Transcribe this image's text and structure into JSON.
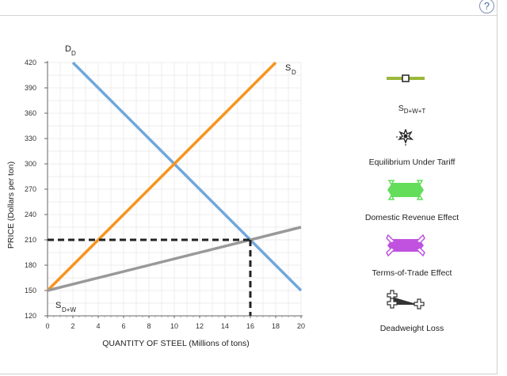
{
  "help_icon": "?",
  "chart_data": {
    "type": "line",
    "xlabel": "QUANTITY OF STEEL (Millions of tons)",
    "ylabel": "PRICE (Dollars per ton)",
    "xlim": [
      0,
      20
    ],
    "ylim": [
      120,
      420
    ],
    "x_ticks": [
      "0",
      "2",
      "4",
      "6",
      "8",
      "10",
      "12",
      "14",
      "16",
      "18",
      "20"
    ],
    "y_ticks": [
      "120",
      "150",
      "180",
      "210",
      "240",
      "270",
      "300",
      "330",
      "360",
      "390",
      "420"
    ],
    "grid": true,
    "series": [
      {
        "name": "D",
        "name_sub": "D",
        "color": "#6fa8dc",
        "x": [
          2,
          20
        ],
        "y": [
          420,
          150
        ]
      },
      {
        "name": "S",
        "name_sub": "D",
        "color": "#f7941d",
        "x": [
          0,
          18
        ],
        "y": [
          150,
          420
        ]
      },
      {
        "name": "S",
        "name_sub": "D+W",
        "color": "#999999",
        "x": [
          0,
          20
        ],
        "y": [
          150,
          225
        ]
      }
    ],
    "dashed_lines": [
      {
        "from": [
          0,
          210
        ],
        "to": [
          16,
          210
        ],
        "color": "#222222"
      },
      {
        "from": [
          16,
          210
        ],
        "to": [
          16,
          120
        ],
        "color": "#222222"
      }
    ]
  },
  "legend": [
    {
      "icon": "line-icon",
      "main": "S",
      "sub": "D+W+T",
      "color": "#9ab83a"
    },
    {
      "icon": "star-point-icon",
      "label": "Equilibrium Under Tariff",
      "color": "#333333"
    },
    {
      "icon": "green-polygon-icon",
      "label": "Domestic Revenue Effect",
      "color": "#63dd5a"
    },
    {
      "icon": "purple-polygon-icon",
      "label": "Terms-of-Trade Effect",
      "color": "#c052df"
    },
    {
      "icon": "black-triangle-icon",
      "label": "Deadweight Loss",
      "color": "#333333"
    }
  ]
}
